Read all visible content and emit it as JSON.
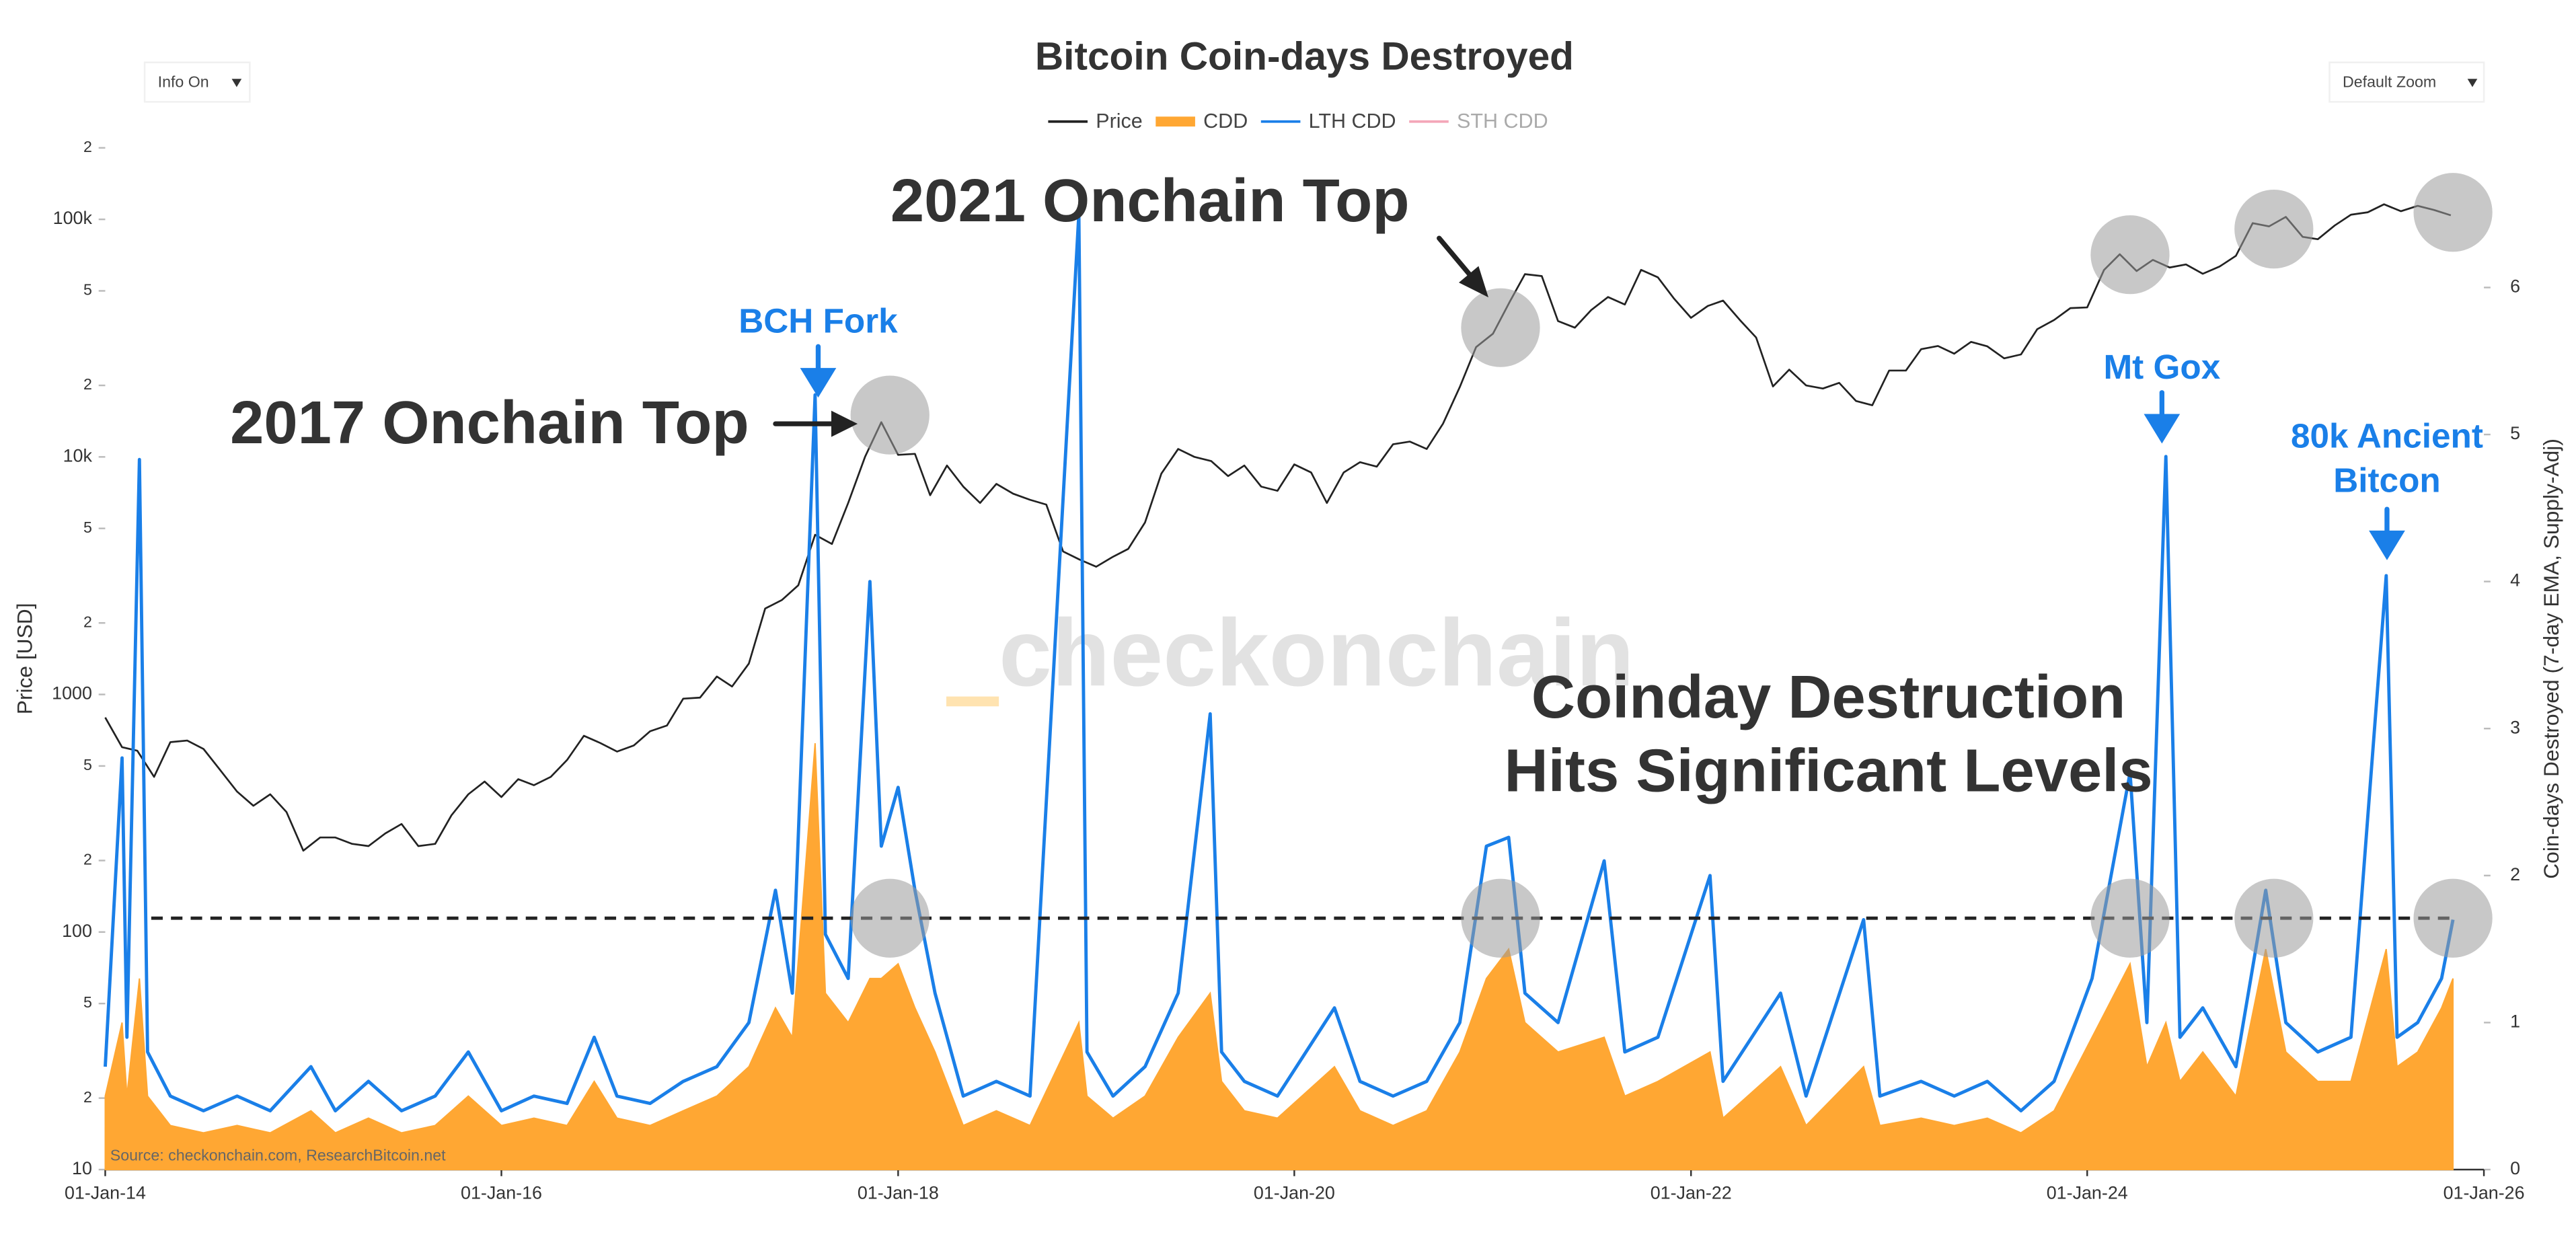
{
  "chart_data": {
    "type": "line",
    "title": "Bitcoin Coin-days Destroyed",
    "controls": [
      "Info On",
      "Default Zoom"
    ],
    "watermark": "checkonchain",
    "source": "Source: checkonchain.com, ResearchBitcoin.net",
    "ylabel": "Price [USD]",
    "y2label": "Coin-days Destroyed (7-day EMA, Supply-Adj)",
    "yscale": "log",
    "xlim": [
      "2014-01-01",
      "2026-01-01"
    ],
    "xticks": [
      {
        "value": "2014-01-01",
        "label": "01-Jan-14"
      },
      {
        "value": "2016-01-01",
        "label": "01-Jan-16"
      },
      {
        "value": "2018-01-01",
        "label": "01-Jan-18"
      },
      {
        "value": "2020-01-01",
        "label": "01-Jan-20"
      },
      {
        "value": "2022-01-01",
        "label": "01-Jan-22"
      },
      {
        "value": "2024-01-01",
        "label": "01-Jan-24"
      },
      {
        "value": "2026-01-01",
        "label": "01-Jan-26"
      }
    ],
    "ylim": [
      10,
      200000
    ],
    "yticks": [
      10,
      {
        "value": 20,
        "label": "2"
      },
      {
        "value": 50,
        "label": "5"
      },
      100,
      {
        "value": 200,
        "label": "2"
      },
      {
        "value": 500,
        "label": "5"
      },
      1000,
      {
        "value": 2000,
        "label": "2"
      },
      {
        "value": 5000,
        "label": "5"
      },
      {
        "value": 10000,
        "label": "10k"
      },
      {
        "value": 20000,
        "label": "2"
      },
      {
        "value": 50000,
        "label": "5"
      },
      {
        "value": 100000,
        "label": "100k"
      },
      {
        "value": 200000,
        "label": "2"
      }
    ],
    "y2lim": [
      0,
      6.95
    ],
    "y2ticks": [
      0,
      1,
      2,
      3,
      4,
      5,
      6
    ],
    "reference_line_y2": 1.71,
    "series": [
      {
        "name": "Price",
        "color": "#222222",
        "style": "line",
        "x": [
          "2014-01-01",
          "2014-02-01",
          "2014-03-01",
          "2014-04-01",
          "2014-05-01",
          "2014-06-01",
          "2014-07-01",
          "2014-08-01",
          "2014-09-01",
          "2014-10-01",
          "2014-11-01",
          "2014-12-01",
          "2015-01-01",
          "2015-02-01",
          "2015-03-01",
          "2015-04-01",
          "2015-05-01",
          "2015-06-01",
          "2015-07-01",
          "2015-08-01",
          "2015-09-01",
          "2015-10-01",
          "2015-11-01",
          "2015-12-01",
          "2016-01-01",
          "2016-02-01",
          "2016-03-01",
          "2016-04-01",
          "2016-05-01",
          "2016-06-01",
          "2016-07-01",
          "2016-08-01",
          "2016-09-01",
          "2016-10-01",
          "2016-11-01",
          "2016-12-01",
          "2017-01-01",
          "2017-02-01",
          "2017-03-01",
          "2017-04-01",
          "2017-05-01",
          "2017-06-01",
          "2017-07-01",
          "2017-08-01",
          "2017-09-01",
          "2017-10-01",
          "2017-11-01",
          "2017-12-01",
          "2018-01-01",
          "2018-02-01",
          "2018-03-01",
          "2018-04-01",
          "2018-05-01",
          "2018-06-01",
          "2018-07-01",
          "2018-08-01",
          "2018-09-01",
          "2018-10-01",
          "2018-11-01",
          "2018-12-01",
          "2019-01-01",
          "2019-02-01",
          "2019-03-01",
          "2019-04-01",
          "2019-05-01",
          "2019-06-01",
          "2019-07-01",
          "2019-08-01",
          "2019-09-01",
          "2019-10-01",
          "2019-11-01",
          "2019-12-01",
          "2020-01-01",
          "2020-02-01",
          "2020-03-01",
          "2020-04-01",
          "2020-05-01",
          "2020-06-01",
          "2020-07-01",
          "2020-08-01",
          "2020-09-01",
          "2020-10-01",
          "2020-11-01",
          "2020-12-01",
          "2021-01-01",
          "2021-02-01",
          "2021-03-01",
          "2021-04-01",
          "2021-05-01",
          "2021-06-01",
          "2021-07-01",
          "2021-08-01",
          "2021-09-01",
          "2021-10-01",
          "2021-11-01",
          "2021-12-01",
          "2022-01-01",
          "2022-02-01",
          "2022-03-01",
          "2022-04-01",
          "2022-05-01",
          "2022-06-01",
          "2022-07-01",
          "2022-08-01",
          "2022-09-01",
          "2022-10-01",
          "2022-11-01",
          "2022-12-01",
          "2023-01-01",
          "2023-02-01",
          "2023-03-01",
          "2023-04-01",
          "2023-05-01",
          "2023-06-01",
          "2023-07-01",
          "2023-08-01",
          "2023-09-01",
          "2023-10-01",
          "2023-11-01",
          "2023-12-01",
          "2024-01-01",
          "2024-02-01",
          "2024-03-01",
          "2024-04-01",
          "2024-05-01",
          "2024-06-01",
          "2024-07-01",
          "2024-08-01",
          "2024-09-01",
          "2024-10-01",
          "2024-11-01",
          "2024-12-01",
          "2025-01-01",
          "2025-02-01",
          "2025-03-01",
          "2025-04-01",
          "2025-05-01",
          "2025-06-01",
          "2025-07-01",
          "2025-08-01",
          "2025-09-01",
          "2025-10-01",
          "2025-11-01"
        ],
        "values": [
          800,
          600,
          580,
          450,
          630,
          640,
          590,
          480,
          390,
          340,
          380,
          320,
          220,
          250,
          250,
          235,
          230,
          260,
          285,
          230,
          235,
          310,
          380,
          430,
          370,
          440,
          415,
          450,
          530,
          670,
          625,
          575,
          610,
          700,
          740,
          960,
          970,
          1190,
          1080,
          1350,
          2300,
          2500,
          2880,
          4700,
          4300,
          6400,
          10000,
          14000,
          10200,
          10300,
          6900,
          9200,
          7500,
          6400,
          7700,
          7000,
          6600,
          6300,
          4000,
          3700,
          3450,
          3800,
          4100,
          5300,
          8500,
          10800,
          10000,
          9600,
          8300,
          9200,
          7500,
          7200,
          9300,
          8600,
          6400,
          8600,
          9500,
          9100,
          11300,
          11600,
          10800,
          13800,
          19700,
          29000,
          33000,
          45000,
          58800,
          57700,
          37300,
          35000,
          41500,
          47100,
          43800,
          61300,
          57000,
          46300,
          38500,
          43200,
          45500,
          37700,
          31800,
          19800,
          23300,
          20000,
          19400,
          20500,
          17200,
          16500,
          23100,
          23100,
          28400,
          29300,
          27200,
          30500,
          29200,
          26000,
          27000,
          34500,
          37700,
          42300,
          42600,
          61200,
          71300,
          60600,
          67500,
          62700,
          64600,
          59000,
          63300,
          70200,
          96400,
          93400,
          102400,
          84400,
          82500,
          94200,
          104600,
          107100,
          115700,
          108200,
          114000,
          109500,
          104000
        ]
      },
      {
        "name": "CDD",
        "color": "#ffa733",
        "style": "area",
        "axis": "y2",
        "x": [
          "2014-01-01",
          "2014-02-01",
          "2014-02-10",
          "2014-03-05",
          "2014-03-20",
          "2014-05-01",
          "2014-07-01",
          "2014-09-01",
          "2014-11-01",
          "2015-01-15",
          "2015-03-01",
          "2015-05-01",
          "2015-07-01",
          "2015-09-01",
          "2015-11-01",
          "2016-01-01",
          "2016-03-01",
          "2016-05-01",
          "2016-06-20",
          "2016-08-01",
          "2016-10-01",
          "2016-12-01",
          "2017-02-01",
          "2017-04-01",
          "2017-05-20",
          "2017-06-20",
          "2017-08-01",
          "2017-08-20",
          "2017-10-01",
          "2017-11-10",
          "2017-12-01",
          "2018-01-01",
          "2018-02-01",
          "2018-03-10",
          "2018-05-01",
          "2018-07-01",
          "2018-09-01",
          "2018-11-30",
          "2018-12-15",
          "2019-02-01",
          "2019-04-01",
          "2019-06-01",
          "2019-07-30",
          "2019-08-20",
          "2019-10-01",
          "2019-12-01",
          "2020-03-15",
          "2020-05-01",
          "2020-07-01",
          "2020-09-01",
          "2020-11-01",
          "2020-12-20",
          "2021-01-30",
          "2021-03-01",
          "2021-05-01",
          "2021-07-25",
          "2021-09-01",
          "2021-11-01",
          "2022-02-05",
          "2022-03-01",
          "2022-06-15",
          "2022-08-01",
          "2022-11-15",
          "2022-12-15",
          "2023-03-01",
          "2023-05-01",
          "2023-07-01",
          "2023-09-01",
          "2023-11-01",
          "2024-01-10",
          "2024-03-20",
          "2024-04-20",
          "2024-05-25",
          "2024-06-20",
          "2024-08-01",
          "2024-10-01",
          "2024-11-25",
          "2025-01-01",
          "2025-03-01",
          "2025-05-01",
          "2025-07-05",
          "2025-07-25",
          "2025-09-01",
          "2025-10-15",
          "2025-11-05"
        ],
        "values": [
          0.5,
          1.0,
          0.5,
          1.3,
          0.5,
          0.3,
          0.25,
          0.3,
          0.25,
          0.4,
          0.25,
          0.35,
          0.25,
          0.3,
          0.5,
          0.3,
          0.35,
          0.3,
          0.6,
          0.35,
          0.3,
          0.4,
          0.5,
          0.7,
          1.1,
          0.9,
          2.9,
          1.2,
          1.0,
          1.3,
          1.3,
          1.4,
          1.1,
          0.8,
          0.3,
          0.4,
          0.3,
          1.0,
          0.5,
          0.35,
          0.5,
          0.9,
          1.2,
          0.6,
          0.4,
          0.35,
          0.7,
          0.4,
          0.3,
          0.4,
          0.8,
          1.3,
          1.5,
          1.0,
          0.8,
          0.9,
          0.5,
          0.6,
          0.8,
          0.35,
          0.7,
          0.3,
          0.7,
          0.3,
          0.35,
          0.3,
          0.35,
          0.25,
          0.4,
          0.9,
          1.4,
          0.7,
          1.0,
          0.6,
          0.8,
          0.5,
          1.5,
          0.8,
          0.6,
          0.6,
          1.5,
          0.7,
          0.8,
          1.1,
          1.3
        ]
      },
      {
        "name": "LTH CDD",
        "color": "#1a7fe8",
        "style": "line",
        "axis": "y2",
        "x": [
          "2014-01-01",
          "2014-02-01",
          "2014-02-10",
          "2014-03-05",
          "2014-03-20",
          "2014-05-01",
          "2014-07-01",
          "2014-09-01",
          "2014-11-01",
          "2015-01-15",
          "2015-03-01",
          "2015-05-01",
          "2015-07-01",
          "2015-09-01",
          "2015-11-01",
          "2016-01-01",
          "2016-03-01",
          "2016-05-01",
          "2016-06-20",
          "2016-08-01",
          "2016-10-01",
          "2016-12-01",
          "2017-02-01",
          "2017-04-01",
          "2017-05-20",
          "2017-06-20",
          "2017-08-01",
          "2017-08-20",
          "2017-10-01",
          "2017-11-10",
          "2017-12-01",
          "2018-01-01",
          "2018-02-01",
          "2018-03-10",
          "2018-05-01",
          "2018-07-01",
          "2018-09-01",
          "2018-11-30",
          "2018-12-15",
          "2019-02-01",
          "2019-04-01",
          "2019-06-01",
          "2019-07-30",
          "2019-08-20",
          "2019-10-01",
          "2019-12-01",
          "2020-03-15",
          "2020-05-01",
          "2020-07-01",
          "2020-09-01",
          "2020-11-01",
          "2020-12-20",
          "2021-01-30",
          "2021-03-01",
          "2021-05-01",
          "2021-07-25",
          "2021-09-01",
          "2021-11-01",
          "2022-02-05",
          "2022-03-01",
          "2022-06-15",
          "2022-08-01",
          "2022-11-15",
          "2022-12-15",
          "2023-03-01",
          "2023-05-01",
          "2023-07-01",
          "2023-09-01",
          "2023-11-01",
          "2024-01-10",
          "2024-03-20",
          "2024-04-20",
          "2024-05-25",
          "2024-06-20",
          "2024-08-01",
          "2024-10-01",
          "2024-11-25",
          "2025-01-01",
          "2025-03-01",
          "2025-05-01",
          "2025-07-05",
          "2025-07-25",
          "2025-09-01",
          "2025-10-15",
          "2025-11-05"
        ],
        "values": [
          0.7,
          2.8,
          0.9,
          4.83,
          0.8,
          0.5,
          0.4,
          0.5,
          0.4,
          0.7,
          0.4,
          0.6,
          0.4,
          0.5,
          0.8,
          0.4,
          0.5,
          0.45,
          0.9,
          0.5,
          0.45,
          0.6,
          0.7,
          1.0,
          1.9,
          1.2,
          5.27,
          1.6,
          1.3,
          4.0,
          2.2,
          2.6,
          1.9,
          1.2,
          0.5,
          0.6,
          0.5,
          6.5,
          0.8,
          0.5,
          0.7,
          1.2,
          3.1,
          0.8,
          0.6,
          0.5,
          1.1,
          0.6,
          0.5,
          0.6,
          1.0,
          2.2,
          2.26,
          1.2,
          1.0,
          2.1,
          0.8,
          0.9,
          2.0,
          0.6,
          1.2,
          0.5,
          1.7,
          0.5,
          0.6,
          0.5,
          0.6,
          0.4,
          0.6,
          1.3,
          2.7,
          1.0,
          4.85,
          0.9,
          1.1,
          0.7,
          1.9,
          1.0,
          0.8,
          0.9,
          4.04,
          0.9,
          1.0,
          1.3,
          1.7
        ]
      },
      {
        "name": "STH CDD",
        "color": "#f4a6b8",
        "style": "line",
        "axis": "y2",
        "visible": false
      }
    ],
    "highlights": [
      {
        "x": "2017-12-17",
        "price": 15000
      },
      {
        "x": "2021-01-15",
        "price": 35000
      },
      {
        "x": "2024-03-20",
        "price": 71000
      },
      {
        "x": "2024-12-10",
        "price": 91000
      },
      {
        "x": "2025-11-05",
        "price": 107000
      }
    ],
    "annotations": [
      {
        "lines": [
          "2017 Onchain Top"
        ],
        "color": "#333333"
      },
      {
        "lines": [
          "2021 Onchain Top"
        ],
        "color": "#333333"
      },
      {
        "lines": [
          "BCH Fork"
        ],
        "color": "#1a7fe8"
      },
      {
        "lines": [
          "Mt Gox"
        ],
        "color": "#1a7fe8"
      },
      {
        "lines": [
          "80k Ancient",
          "Bitcon"
        ],
        "color": "#1a7fe8"
      },
      {
        "lines": [
          "Coinday Destruction",
          "Hits Significant Levels"
        ],
        "color": "#333333"
      }
    ]
  }
}
